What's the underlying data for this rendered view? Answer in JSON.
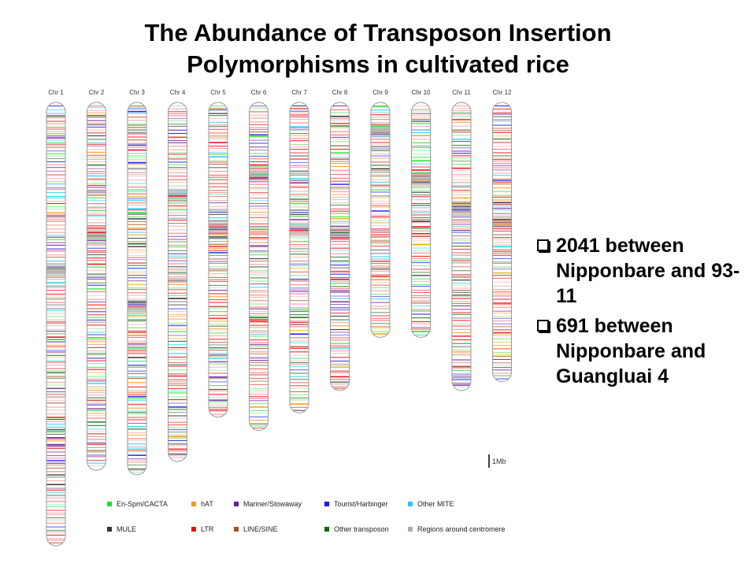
{
  "title": {
    "line1": "The Abundance of Transposon Insertion",
    "line2": "Polymorphisms in cultivated rice"
  },
  "bullets": [
    {
      "text": "2041 between Nipponbare and 93-11"
    },
    {
      "text": "691 between Nipponbare and Guangluai 4"
    }
  ],
  "chromosomes": [
    {
      "label": "Chr 1",
      "length": 1.0,
      "centromere": 0.38
    },
    {
      "label": "Chr 2",
      "length": 0.83,
      "centromere": 0.36
    },
    {
      "label": "Chr 3",
      "length": 0.84,
      "centromere": 0.55
    },
    {
      "label": "Chr 4",
      "length": 0.81,
      "centromere": 0.26
    },
    {
      "label": "Chr 5",
      "length": 0.71,
      "centromere": 0.4
    },
    {
      "label": "Chr 6",
      "length": 0.74,
      "centromere": 0.22
    },
    {
      "label": "Chr 7",
      "length": 0.7,
      "centromere": 0.41
    },
    {
      "label": "Chr 8",
      "length": 0.65,
      "centromere": 0.45
    },
    {
      "label": "Chr 9",
      "length": 0.53,
      "centromere": 0.12
    },
    {
      "label": "Chr 10",
      "length": 0.53,
      "centromere": 0.33
    },
    {
      "label": "Chr 11",
      "length": 0.65,
      "centromere": 0.37
    },
    {
      "label": "Chr 12",
      "length": 0.63,
      "centromere": 0.43
    }
  ],
  "scale_bar": {
    "label": "1Mb"
  },
  "legend": [
    {
      "name": "En-Spm/CACTA",
      "color": "#22dd22"
    },
    {
      "name": "hAT",
      "color": "#ff9900"
    },
    {
      "name": "Mariner/Stowaway",
      "color": "#6a1b9a"
    },
    {
      "name": "Tourist/Harbinger",
      "color": "#1a1aee"
    },
    {
      "name": "Other MITE",
      "color": "#22ccee"
    },
    {
      "name": "MULE",
      "color": "#333333"
    },
    {
      "name": "LTR",
      "color": "#ee1111"
    },
    {
      "name": "LINE/SINE",
      "color": "#a0522d"
    },
    {
      "name": "Other transposon",
      "color": "#116611"
    },
    {
      "name": "Regions around centromere",
      "color": "#aaaaaa"
    }
  ]
}
